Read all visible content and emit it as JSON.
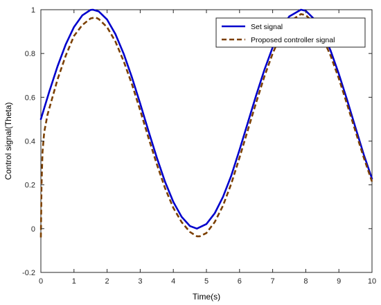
{
  "chart_data": {
    "type": "line",
    "title": "",
    "xlabel": "Time(s)",
    "ylabel": "Control signal(Theta)",
    "xlim": [
      0,
      10
    ],
    "ylim": [
      -0.2,
      1
    ],
    "xticks": [
      "0",
      "1",
      "2",
      "3",
      "4",
      "5",
      "6",
      "7",
      "8",
      "9",
      "10"
    ],
    "yticks": [
      "-0.2",
      "0",
      "0.2",
      "0.4",
      "0.6",
      "0.8",
      "1"
    ],
    "grid": true,
    "legend_position": "top-right",
    "series": [
      {
        "name": "Set signal",
        "color": "#0000CC",
        "style": "solid",
        "x": [
          0,
          0.25,
          0.5,
          0.75,
          1,
          1.25,
          1.5,
          1.571,
          1.75,
          2,
          2.25,
          2.5,
          2.75,
          3,
          3.25,
          3.5,
          3.75,
          4,
          4.25,
          4.5,
          4.712,
          5,
          5.25,
          5.5,
          5.75,
          6,
          6.25,
          6.5,
          6.75,
          7,
          7.25,
          7.5,
          7.854,
          8,
          8.25,
          8.5,
          8.75,
          9,
          9.25,
          9.5,
          9.75,
          10
        ],
        "values": [
          0.5,
          0.624,
          0.74,
          0.841,
          0.921,
          0.974,
          0.999,
          1.0,
          0.992,
          0.955,
          0.889,
          0.799,
          0.691,
          0.571,
          0.446,
          0.325,
          0.214,
          0.122,
          0.054,
          0.012,
          0.0,
          0.021,
          0.07,
          0.145,
          0.242,
          0.36,
          0.484,
          0.608,
          0.725,
          0.828,
          0.911,
          0.969,
          1.0,
          0.995,
          0.958,
          0.899,
          0.813,
          0.706,
          0.587,
          0.462,
          0.339,
          0.228
        ]
      },
      {
        "name": "Proposed controller signal",
        "color": "#7B3F00",
        "style": "dashed",
        "x": [
          0,
          0.02,
          0.05,
          0.1,
          0.2,
          0.35,
          0.5,
          0.75,
          1,
          1.25,
          1.5,
          1.65,
          1.75,
          2,
          2.25,
          2.5,
          2.75,
          3,
          3.25,
          3.5,
          3.75,
          4,
          4.25,
          4.5,
          4.712,
          4.8,
          5,
          5.25,
          5.5,
          5.75,
          6,
          6.25,
          6.5,
          6.75,
          7,
          7.25,
          7.5,
          7.854,
          8,
          8.25,
          8.5,
          8.75,
          9,
          9.25,
          9.5,
          9.75,
          10
        ],
        "values": [
          -0.04,
          0.2,
          0.35,
          0.44,
          0.52,
          0.6,
          0.68,
          0.79,
          0.88,
          0.93,
          0.96,
          0.965,
          0.957,
          0.92,
          0.855,
          0.765,
          0.66,
          0.54,
          0.415,
          0.295,
          0.185,
          0.095,
          0.03,
          -0.015,
          -0.035,
          -0.035,
          -0.02,
          0.03,
          0.105,
          0.205,
          0.325,
          0.45,
          0.575,
          0.695,
          0.8,
          0.885,
          0.945,
          0.98,
          0.975,
          0.94,
          0.875,
          0.79,
          0.685,
          0.567,
          0.445,
          0.325,
          0.215
        ]
      }
    ]
  }
}
